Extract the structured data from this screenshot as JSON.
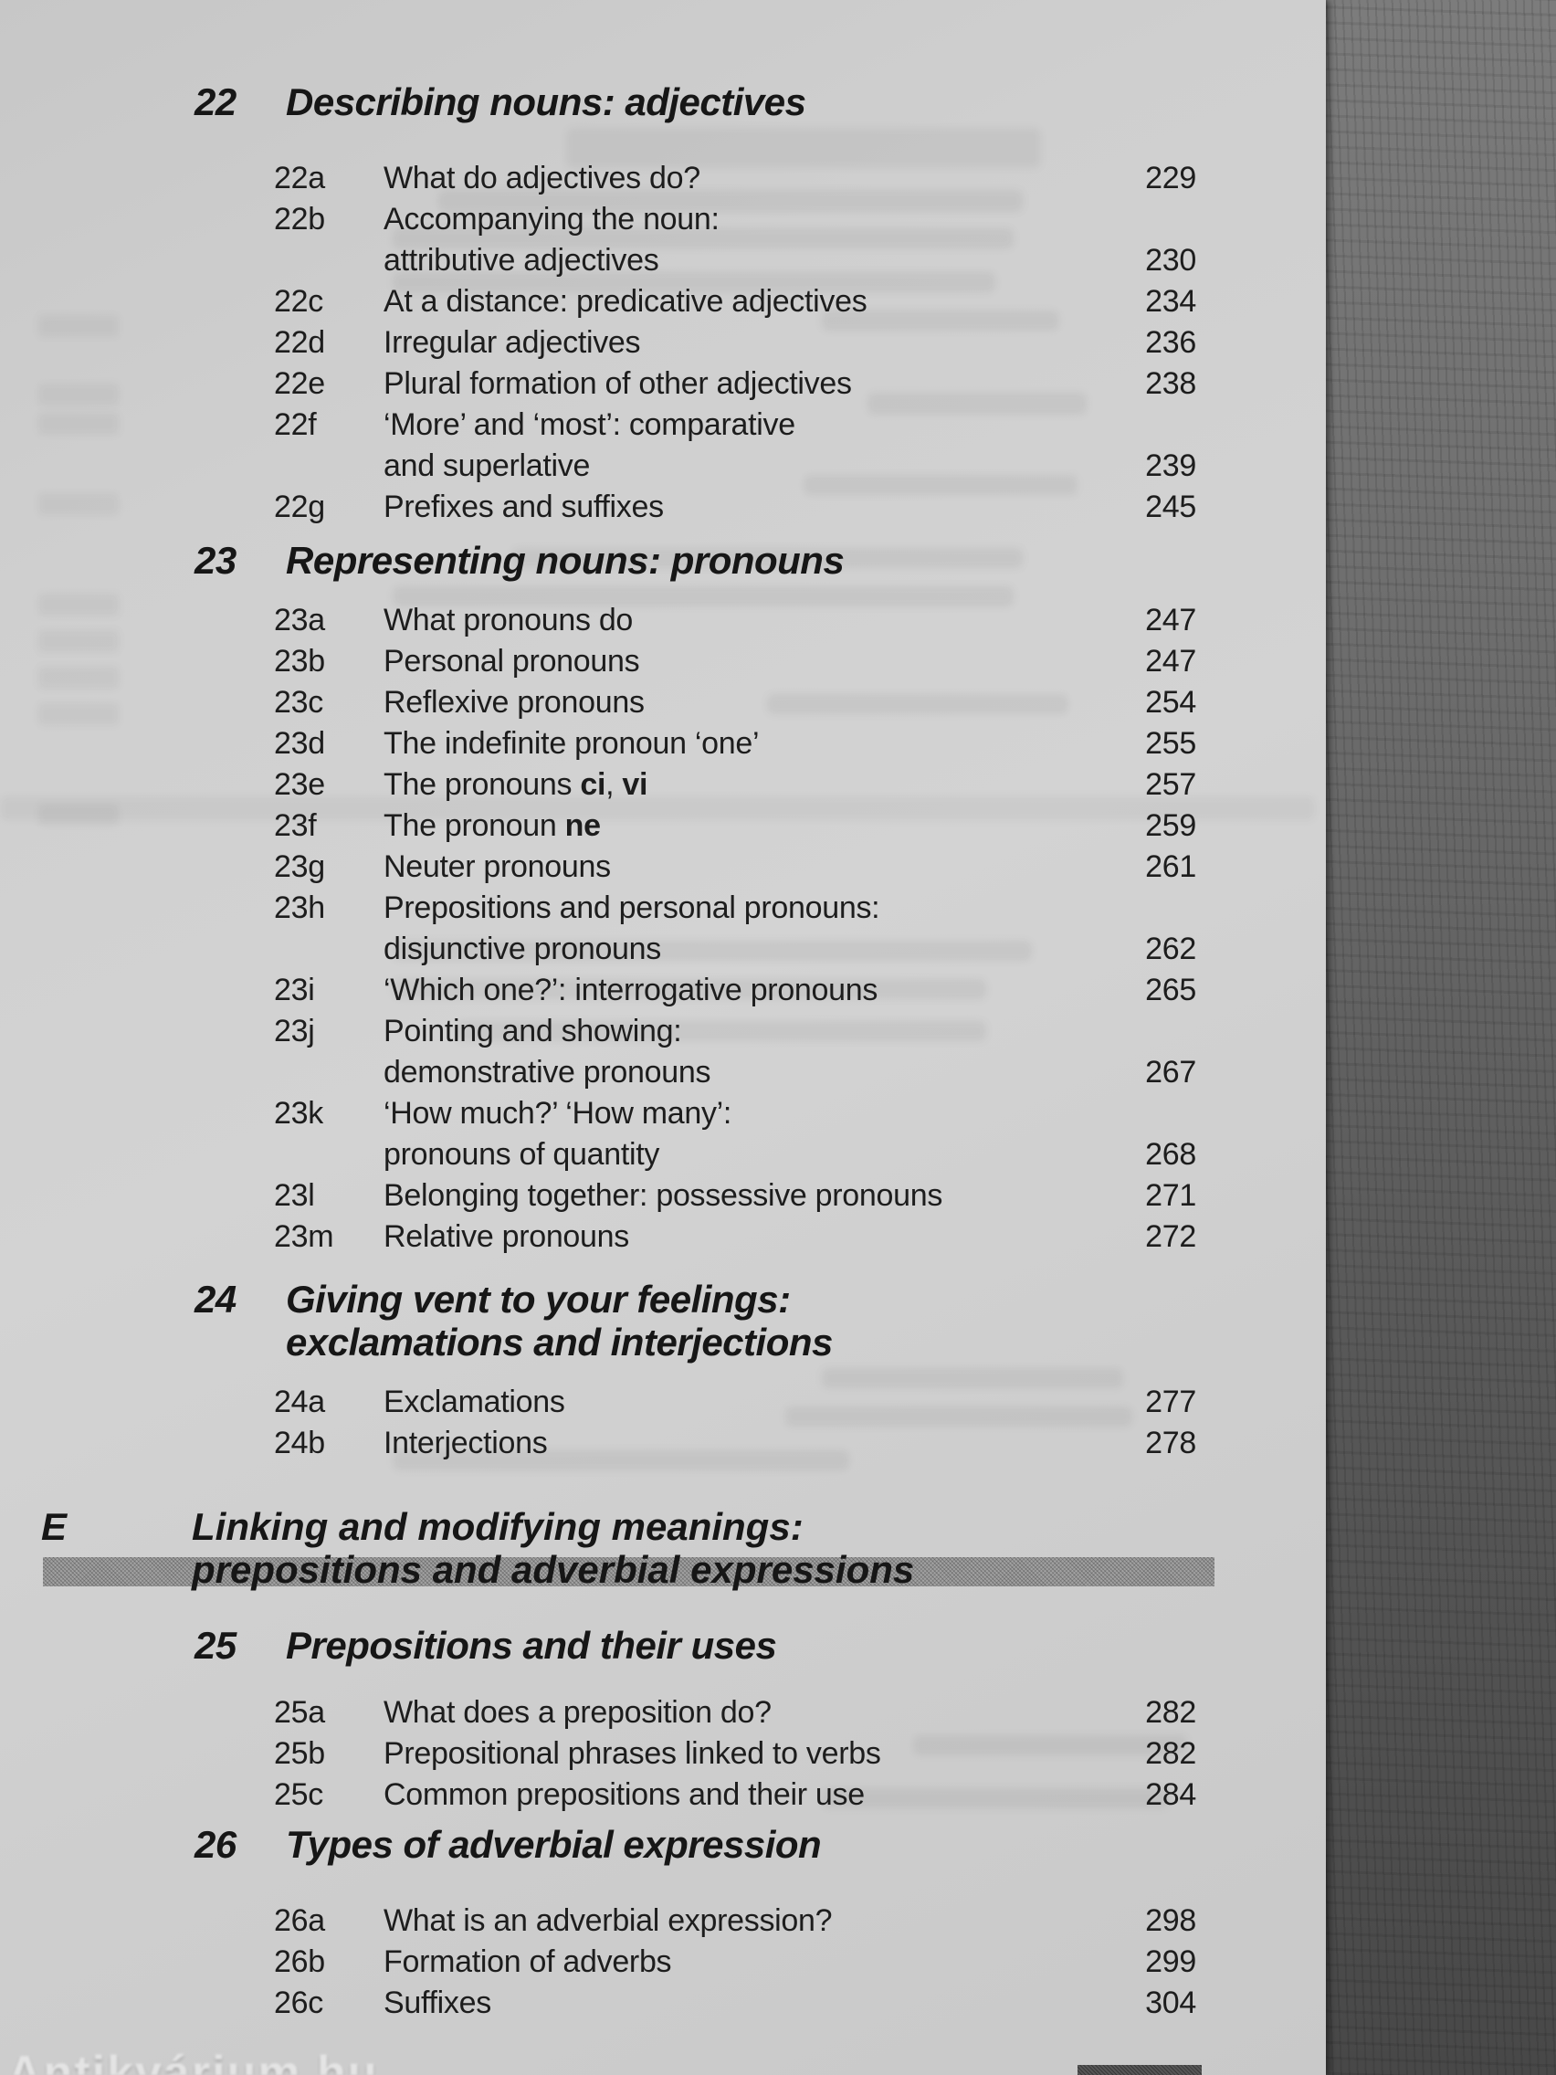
{
  "page": {
    "kind": "table-of-contents",
    "watermark": "Antikvárium.hu"
  },
  "toc": {
    "sections": [
      {
        "kind": "chapter",
        "number": "22",
        "title_lines": [
          "Describing nouns: adjectives"
        ],
        "margin_class": "mt22",
        "entries": [
          {
            "label": "22a",
            "lines": [
              "What do adjectives do?"
            ],
            "page": "229"
          },
          {
            "label": "22b",
            "lines": [
              "Accompanying the noun:",
              "attributive adjectives"
            ],
            "page": "230"
          },
          {
            "label": "22c",
            "lines": [
              "At a distance: predicative adjectives"
            ],
            "page": "234"
          },
          {
            "label": "22d",
            "lines": [
              "Irregular adjectives"
            ],
            "page": "236"
          },
          {
            "label": "22e",
            "lines": [
              "Plural formation of other adjectives"
            ],
            "page": "238"
          },
          {
            "label": "22f",
            "lines": [
              "‘More’ and ‘most’: comparative",
              "and superlative"
            ],
            "page": "239"
          },
          {
            "label": "22g",
            "lines": [
              "Prefixes and suffixes"
            ],
            "page": "245"
          }
        ]
      },
      {
        "kind": "chapter",
        "number": "23",
        "title_lines": [
          "Representing nouns: pronouns"
        ],
        "margin_class": "mt23",
        "entries": [
          {
            "label": "23a",
            "lines": [
              "What pronouns do"
            ],
            "page": "247"
          },
          {
            "label": "23b",
            "lines": [
              "Personal pronouns"
            ],
            "page": "247"
          },
          {
            "label": "23c",
            "lines": [
              "Reflexive pronouns"
            ],
            "page": "254"
          },
          {
            "label": "23d",
            "lines": [
              "The indefinite pronoun ‘one’"
            ],
            "page": "255"
          },
          {
            "label": "23e",
            "lines": [
              [
                {
                  "t": "The pronouns "
                },
                {
                  "t": "ci",
                  "b": true
                },
                {
                  "t": ", "
                },
                {
                  "t": "vi",
                  "b": true
                }
              ]
            ],
            "page": "257"
          },
          {
            "label": "23f",
            "lines": [
              [
                {
                  "t": "The pronoun "
                },
                {
                  "t": "ne",
                  "b": true
                }
              ]
            ],
            "page": "259"
          },
          {
            "label": "23g",
            "lines": [
              "Neuter pronouns"
            ],
            "page": "261"
          },
          {
            "label": "23h",
            "lines": [
              "Prepositions and personal pronouns:",
              "disjunctive pronouns"
            ],
            "page": "262"
          },
          {
            "label": "23i",
            "lines": [
              "‘Which one?’: interrogative pronouns"
            ],
            "page": "265"
          },
          {
            "label": "23j",
            "lines": [
              "Pointing and showing:",
              "demonstrative pronouns"
            ],
            "page": "267"
          },
          {
            "label": "23k",
            "lines": [
              "‘How much?’ ‘How many’:",
              "pronouns of quantity"
            ],
            "page": "268"
          },
          {
            "label": "23l",
            "lines": [
              "Belonging together: possessive pronouns"
            ],
            "page": "271"
          },
          {
            "label": "23m",
            "lines": [
              "Relative pronouns"
            ],
            "page": "272"
          }
        ]
      },
      {
        "kind": "chapter",
        "number": "24",
        "title_lines": [
          "Giving vent to your feelings:",
          "exclamations and interjections"
        ],
        "margin_class": "mt24",
        "entries": [
          {
            "label": "24a",
            "lines": [
              "Exclamations"
            ],
            "page": "277"
          },
          {
            "label": "24b",
            "lines": [
              "Interjections"
            ],
            "page": "278"
          }
        ]
      },
      {
        "kind": "part",
        "letter": "E",
        "title_lines": [
          "Linking and modifying meanings:",
          "prepositions and adverbial expressions"
        ]
      },
      {
        "kind": "chapter",
        "number": "25",
        "title_lines": [
          "Prepositions and their uses"
        ],
        "margin_class": "mt25",
        "entries": [
          {
            "label": "25a",
            "lines": [
              "What does a preposition do?"
            ],
            "page": "282"
          },
          {
            "label": "25b",
            "lines": [
              "Prepositional phrases linked to verbs"
            ],
            "page": "282"
          },
          {
            "label": "25c",
            "lines": [
              "Common prepositions and their use"
            ],
            "page": "284"
          }
        ]
      },
      {
        "kind": "chapter",
        "number": "26",
        "title_lines": [
          "Types of adverbial expression"
        ],
        "margin_class": "mt26",
        "entries": [
          {
            "label": "26a",
            "lines": [
              "What is an adverbial expression?"
            ],
            "page": "298"
          },
          {
            "label": "26b",
            "lines": [
              "Formation of adverbs"
            ],
            "page": "299"
          },
          {
            "label": "26c",
            "lines": [
              "Suffixes"
            ],
            "page": "304"
          }
        ]
      }
    ]
  }
}
